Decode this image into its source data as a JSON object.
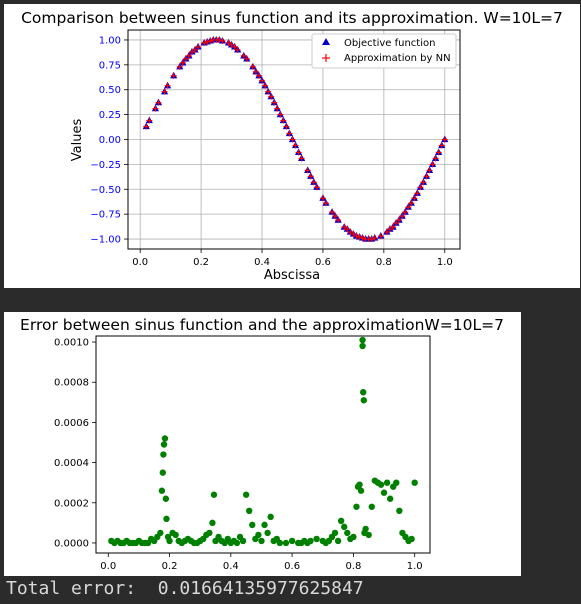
{
  "charts": {
    "top": {
      "title": "Comparison between sinus function and its approximation. W=10L=7",
      "xlabel": "Abscissa",
      "ylabel": "Values",
      "xticks": [
        "0.0",
        "0.2",
        "0.4",
        "0.6",
        "0.8",
        "1.0"
      ],
      "yticks": [
        "1.00",
        "0.75",
        "0.50",
        "0.25",
        "0.00",
        "−0.25",
        "−0.50",
        "−0.75",
        "−1.00"
      ],
      "legend": [
        "Objective function",
        "Approximation by NN"
      ]
    },
    "bottom": {
      "title": "Error between sinus function and the approximationW=10L=7",
      "xticks": [
        "0.0",
        "0.2",
        "0.4",
        "0.6",
        "0.8",
        "1.0"
      ],
      "yticks": [
        "0.0010",
        "0.0008",
        "0.0006",
        "0.0004",
        "0.0002",
        "0.0000"
      ]
    }
  },
  "total_error": {
    "label": "Total error:",
    "value": "0.01664135977625847"
  },
  "colors": {
    "objective": "#0000cc",
    "approximation": "#ff0000",
    "error": "#008000",
    "tick_label_top_y": "#0000ff",
    "grid": "#b0b0b0"
  },
  "chart_data": [
    {
      "type": "scatter",
      "title": "Comparison between sinus function and its approximation. W=10L=7",
      "xlabel": "Abscissa",
      "ylabel": "Values",
      "xlim": [
        -0.04,
        1.05
      ],
      "ylim": [
        -1.1,
        1.1
      ],
      "grid": true,
      "legend_position": "top-right",
      "series": [
        {
          "name": "Objective function",
          "marker": "triangle",
          "x": [
            0.02,
            0.03,
            0.05,
            0.06,
            0.08,
            0.09,
            0.11,
            0.13,
            0.14,
            0.15,
            0.16,
            0.17,
            0.18,
            0.19,
            0.21,
            0.22,
            0.23,
            0.24,
            0.25,
            0.26,
            0.27,
            0.29,
            0.3,
            0.31,
            0.32,
            0.34,
            0.35,
            0.37,
            0.38,
            0.39,
            0.4,
            0.41,
            0.42,
            0.43,
            0.44,
            0.45,
            0.46,
            0.47,
            0.48,
            0.49,
            0.5,
            0.51,
            0.52,
            0.53,
            0.55,
            0.56,
            0.57,
            0.58,
            0.6,
            0.61,
            0.63,
            0.64,
            0.65,
            0.67,
            0.68,
            0.69,
            0.7,
            0.71,
            0.72,
            0.73,
            0.74,
            0.75,
            0.76,
            0.77,
            0.79,
            0.81,
            0.82,
            0.83,
            0.84,
            0.85,
            0.86,
            0.87,
            0.88,
            0.89,
            0.9,
            0.91,
            0.92,
            0.93,
            0.94,
            0.95,
            0.96,
            0.97,
            0.98,
            0.99,
            1.0
          ],
          "y": [
            0.13,
            0.19,
            0.31,
            0.37,
            0.48,
            0.54,
            0.64,
            0.73,
            0.77,
            0.81,
            0.84,
            0.88,
            0.9,
            0.93,
            0.97,
            0.98,
            0.99,
            1.0,
            1.0,
            1.0,
            0.99,
            0.97,
            0.95,
            0.93,
            0.9,
            0.84,
            0.81,
            0.73,
            0.68,
            0.64,
            0.59,
            0.54,
            0.48,
            0.43,
            0.37,
            0.31,
            0.25,
            0.19,
            0.13,
            0.06,
            0.0,
            -0.06,
            -0.13,
            -0.19,
            -0.31,
            -0.37,
            -0.43,
            -0.48,
            -0.59,
            -0.64,
            -0.73,
            -0.77,
            -0.81,
            -0.88,
            -0.9,
            -0.93,
            -0.95,
            -0.97,
            -0.98,
            -0.99,
            -1.0,
            -1.0,
            -1.0,
            -0.99,
            -0.97,
            -0.93,
            -0.9,
            -0.88,
            -0.84,
            -0.81,
            -0.77,
            -0.73,
            -0.68,
            -0.64,
            -0.59,
            -0.54,
            -0.48,
            -0.43,
            -0.37,
            -0.31,
            -0.25,
            -0.19,
            -0.13,
            -0.06,
            0.0
          ]
        },
        {
          "name": "Approximation by NN",
          "marker": "plus",
          "x": [
            0.02,
            0.03,
            0.05,
            0.06,
            0.08,
            0.09,
            0.11,
            0.13,
            0.14,
            0.15,
            0.16,
            0.17,
            0.18,
            0.19,
            0.21,
            0.22,
            0.23,
            0.24,
            0.25,
            0.26,
            0.27,
            0.29,
            0.3,
            0.31,
            0.32,
            0.34,
            0.35,
            0.37,
            0.38,
            0.39,
            0.4,
            0.41,
            0.42,
            0.43,
            0.44,
            0.45,
            0.46,
            0.47,
            0.48,
            0.49,
            0.5,
            0.51,
            0.52,
            0.53,
            0.55,
            0.56,
            0.57,
            0.58,
            0.6,
            0.61,
            0.63,
            0.64,
            0.65,
            0.67,
            0.68,
            0.69,
            0.7,
            0.71,
            0.72,
            0.73,
            0.74,
            0.75,
            0.76,
            0.77,
            0.79,
            0.81,
            0.82,
            0.83,
            0.84,
            0.85,
            0.86,
            0.87,
            0.88,
            0.89,
            0.9,
            0.91,
            0.92,
            0.93,
            0.94,
            0.95,
            0.96,
            0.97,
            0.98,
            0.99,
            1.0
          ],
          "y": [
            0.13,
            0.19,
            0.31,
            0.37,
            0.48,
            0.54,
            0.64,
            0.73,
            0.77,
            0.81,
            0.84,
            0.88,
            0.9,
            0.93,
            0.97,
            0.98,
            0.99,
            1.0,
            1.0,
            1.0,
            0.99,
            0.97,
            0.95,
            0.93,
            0.9,
            0.84,
            0.81,
            0.73,
            0.68,
            0.64,
            0.59,
            0.54,
            0.48,
            0.43,
            0.37,
            0.31,
            0.25,
            0.19,
            0.13,
            0.06,
            0.0,
            -0.06,
            -0.13,
            -0.19,
            -0.31,
            -0.37,
            -0.43,
            -0.48,
            -0.59,
            -0.64,
            -0.73,
            -0.77,
            -0.81,
            -0.88,
            -0.9,
            -0.93,
            -0.95,
            -0.97,
            -0.98,
            -0.99,
            -1.0,
            -1.0,
            -1.0,
            -0.99,
            -0.97,
            -0.93,
            -0.9,
            -0.88,
            -0.84,
            -0.81,
            -0.77,
            -0.73,
            -0.68,
            -0.64,
            -0.59,
            -0.54,
            -0.48,
            -0.43,
            -0.37,
            -0.31,
            -0.25,
            -0.19,
            -0.13,
            -0.06,
            0.0
          ]
        }
      ]
    },
    {
      "type": "scatter",
      "title": "Error between sinus function and the approximationW=10L=7",
      "xlim": [
        -0.04,
        1.05
      ],
      "ylim": [
        -5e-05,
        0.00103
      ],
      "grid": false,
      "series": [
        {
          "x": [
            0.01,
            0.02,
            0.03,
            0.04,
            0.05,
            0.06,
            0.07,
            0.08,
            0.09,
            0.1,
            0.11,
            0.12,
            0.13,
            0.14,
            0.15,
            0.16,
            0.17,
            0.175,
            0.178,
            0.18,
            0.182,
            0.185,
            0.188,
            0.19,
            0.195,
            0.2,
            0.21,
            0.22,
            0.23,
            0.24,
            0.25,
            0.26,
            0.27,
            0.28,
            0.29,
            0.3,
            0.31,
            0.32,
            0.33,
            0.34,
            0.345,
            0.35,
            0.36,
            0.37,
            0.38,
            0.39,
            0.4,
            0.41,
            0.42,
            0.43,
            0.44,
            0.45,
            0.46,
            0.47,
            0.48,
            0.49,
            0.5,
            0.51,
            0.52,
            0.53,
            0.54,
            0.55,
            0.56,
            0.58,
            0.6,
            0.62,
            0.63,
            0.64,
            0.65,
            0.66,
            0.68,
            0.7,
            0.71,
            0.72,
            0.73,
            0.74,
            0.75,
            0.76,
            0.77,
            0.78,
            0.79,
            0.8,
            0.81,
            0.815,
            0.82,
            0.825,
            0.83,
            0.83,
            0.832,
            0.834,
            0.836,
            0.84,
            0.85,
            0.86,
            0.87,
            0.88,
            0.89,
            0.9,
            0.91,
            0.92,
            0.93,
            0.94,
            0.95,
            0.96,
            0.97,
            0.98,
            0.99,
            1.0
          ],
          "y": [
            1e-05,
            0.0,
            1e-05,
            0.0,
            0.0,
            1e-05,
            0.0,
            0.0,
            0.0,
            1e-05,
            0.0,
            0.0,
            0.0,
            2e-05,
            1e-05,
            3e-05,
            5e-05,
            0.00026,
            0.00035,
            0.00044,
            0.00049,
            0.00052,
            0.00022,
            0.00012,
            3e-05,
            1e-05,
            5e-05,
            4e-05,
            1e-05,
            0.0,
            1e-05,
            2e-05,
            1e-05,
            0.0,
            0.0,
            1e-05,
            2e-05,
            4e-05,
            5e-05,
            0.0001,
            0.00024,
            1e-05,
            3e-05,
            1e-05,
            0.0,
            2e-05,
            0.0,
            1e-05,
            0.0,
            3e-05,
            1e-05,
            0.00024,
            0.00016,
            9e-05,
            2e-05,
            4e-05,
            1e-05,
            9e-05,
            5e-05,
            0.00013,
            1e-05,
            2e-05,
            0.0,
            0.0,
            1e-05,
            0.0,
            0.0,
            1e-05,
            0.0,
            1e-05,
            2e-05,
            1e-05,
            0.0,
            1e-05,
            3e-05,
            5e-05,
            1e-05,
            0.00011,
            8e-05,
            5e-05,
            2e-05,
            3e-05,
            0.00018,
            0.00028,
            0.00029,
            0.00026,
            0.00101,
            0.00098,
            0.00075,
            0.00071,
            5e-05,
            7e-05,
            4e-05,
            0.00018,
            0.00031,
            0.0003,
            0.00029,
            0.00025,
            0.0003,
            0.00022,
            0.00028,
            0.0003,
            0.00016,
            5e-05,
            3e-05,
            1e-05,
            2e-05,
            0.0003
          ]
        }
      ]
    }
  ]
}
